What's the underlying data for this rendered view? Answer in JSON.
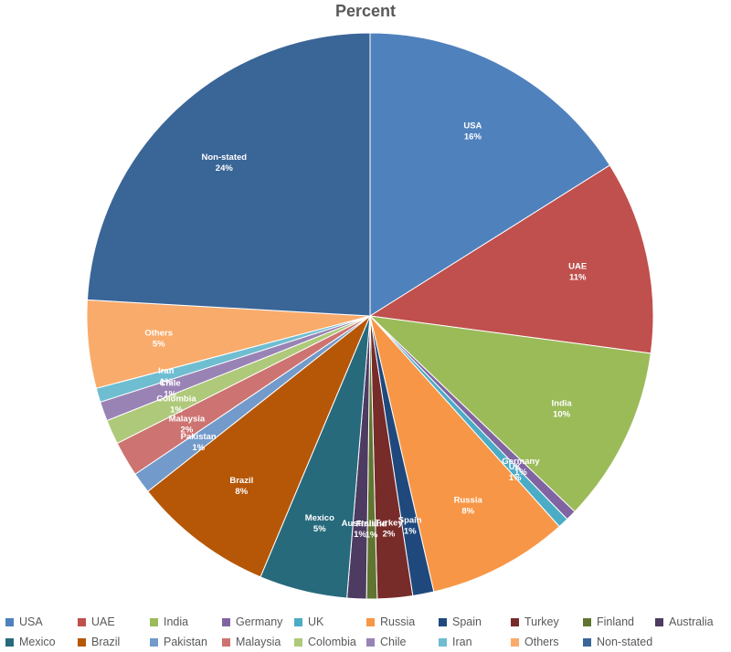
{
  "chart_data": {
    "type": "pie",
    "title": "Percent",
    "legend_position": "bottom",
    "slices": [
      {
        "name": "USA",
        "value": 16,
        "label": "16%",
        "color": "#4F81BD"
      },
      {
        "name": "UAE",
        "value": 11,
        "label": "11%",
        "color": "#C0504D"
      },
      {
        "name": "India",
        "value": 10,
        "label": "10%",
        "color": "#9BBB59"
      },
      {
        "name": "Germany",
        "value": 0.6,
        "label": "1%",
        "color": "#8064A2"
      },
      {
        "name": "UK",
        "value": 0.6,
        "label": "1%",
        "color": "#4BACC6"
      },
      {
        "name": "Russia",
        "value": 8,
        "label": "8%",
        "color": "#F79646"
      },
      {
        "name": "Spain",
        "value": 1.2,
        "label": "1%",
        "color": "#1F497D"
      },
      {
        "name": "Turkey",
        "value": 2,
        "label": "2%",
        "color": "#772C2A"
      },
      {
        "name": "Finland",
        "value": 0.6,
        "label": "1%",
        "color": "#5F7530"
      },
      {
        "name": "Australia",
        "value": 1.1,
        "label": "1%",
        "color": "#4D3B62"
      },
      {
        "name": "Mexico",
        "value": 5,
        "label": "5%",
        "color": "#276A7C"
      },
      {
        "name": "Brazil",
        "value": 8,
        "label": "8%",
        "color": "#B65708"
      },
      {
        "name": "Pakistan",
        "value": 1.2,
        "label": "1%",
        "color": "#729ACA"
      },
      {
        "name": "Malaysia",
        "value": 2,
        "label": "2%",
        "color": "#CD7371"
      },
      {
        "name": "Colombia",
        "value": 1.4,
        "label": "1%",
        "color": "#AFC97A"
      },
      {
        "name": "Chile",
        "value": 1.1,
        "label": "1%",
        "color": "#9983B5"
      },
      {
        "name": "Iran",
        "value": 0.8,
        "label": "1%",
        "color": "#6FBDD1"
      },
      {
        "name": "Others",
        "value": 5,
        "label": "5%",
        "color": "#F9AB6B"
      },
      {
        "name": "Non-stated",
        "value": 24,
        "label": "24%",
        "color": "#3A6597"
      }
    ]
  }
}
